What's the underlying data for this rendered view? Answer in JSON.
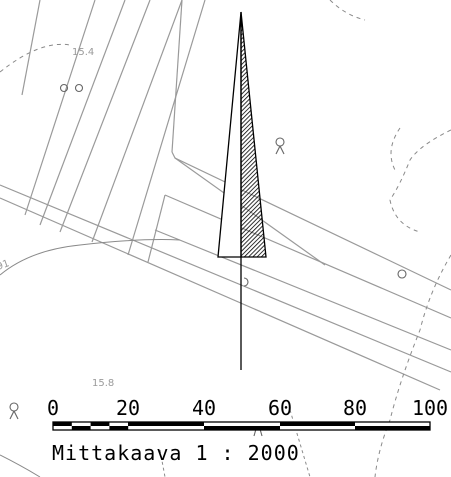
{
  "colors": {
    "background": "#ffffff",
    "parcel_lines": "#9a9a9a",
    "contour_lines": "#8a8a8a",
    "symbols": "#000000"
  },
  "elevation_labels": [
    "15.4",
    "15.8",
    "91"
  ],
  "map_symbols": [
    "tree-symbol",
    "tree-symbol",
    "tree-symbol",
    "tree-symbol",
    "tree-symbol",
    "tree-symbol"
  ],
  "north_arrow": {
    "icon": "north-arrow-icon"
  },
  "scale_bar": {
    "ticks": [
      "0",
      "20",
      "40",
      "60",
      "80",
      "100"
    ],
    "caption": "Mittakaava 1 : 2000"
  }
}
